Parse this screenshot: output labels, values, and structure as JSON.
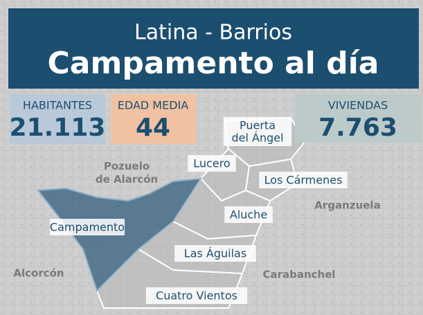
{
  "header": {
    "title": "Latina - Barrios",
    "subtitle": "Campamento al día"
  },
  "stats": [
    {
      "label": "HABITANTES",
      "value": "21.113"
    },
    {
      "label": "EDAD MEDIA",
      "value": "44"
    },
    {
      "label": "VIVIENDAS",
      "value": "7.763"
    }
  ],
  "map": {
    "barrios": [
      [
        "Puerta",
        "del Ángel"
      ],
      [
        "Lucero"
      ],
      [
        "Los Cármenes"
      ],
      [
        "Aluche"
      ],
      [
        "Campamento"
      ],
      [
        "Las Águilas"
      ],
      [
        "Cuatro Vientos"
      ]
    ],
    "surroundings": [
      [
        "Pozuelo",
        "de Alarcón"
      ],
      [
        "Arganzuela"
      ],
      [
        "Alcorcón"
      ],
      [
        "Carabanchel"
      ]
    ]
  }
}
